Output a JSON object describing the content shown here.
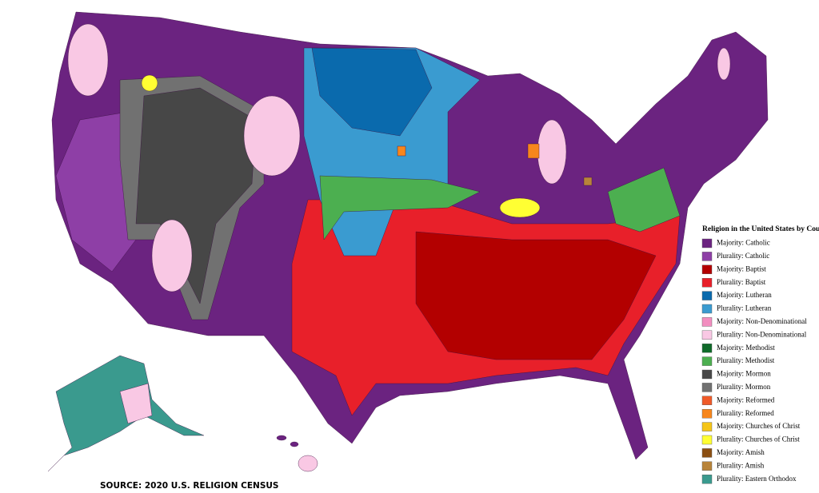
{
  "legend": {
    "title": "Religion in the United States by County",
    "items": [
      {
        "label": "Majority: Catholic",
        "color": "#6b2380"
      },
      {
        "label": "Plurality: Catholic",
        "color": "#8e3fa6"
      },
      {
        "label": "Majority: Baptist",
        "color": "#b30000"
      },
      {
        "label": "Plurality: Baptist",
        "color": "#e8202a"
      },
      {
        "label": "Majority: Lutheran",
        "color": "#0a6aad"
      },
      {
        "label": "Plurality: Lutheran",
        "color": "#3a9bd0"
      },
      {
        "label": "Majority: Non-Denominational",
        "color": "#f28ec0"
      },
      {
        "label": "Plurality: Non-Denominational",
        "color": "#f9c8e4"
      },
      {
        "label": "Majority: Methodist",
        "color": "#0f6b2a"
      },
      {
        "label": "Plurality: Methodist",
        "color": "#4caf50"
      },
      {
        "label": "Majority: Mormon",
        "color": "#474747"
      },
      {
        "label": "Plurality: Mormon",
        "color": "#717171"
      },
      {
        "label": "Majority: Reformed",
        "color": "#f05a28"
      },
      {
        "label": "Plurality: Reformed",
        "color": "#f7861c"
      },
      {
        "label": "Majority: Churches of Christ",
        "color": "#f5c518"
      },
      {
        "label": "Plurality: Churches of Christ",
        "color": "#ffff33"
      },
      {
        "label": "Majority: Amish",
        "color": "#8b4f12"
      },
      {
        "label": "Plurality: Amish",
        "color": "#b8843a"
      },
      {
        "label": "Plurality: Eastern Orthodox",
        "color": "#3a9a8e"
      }
    ]
  },
  "source": "SOURCE: 2020 U.S. RELIGION CENSUS"
}
